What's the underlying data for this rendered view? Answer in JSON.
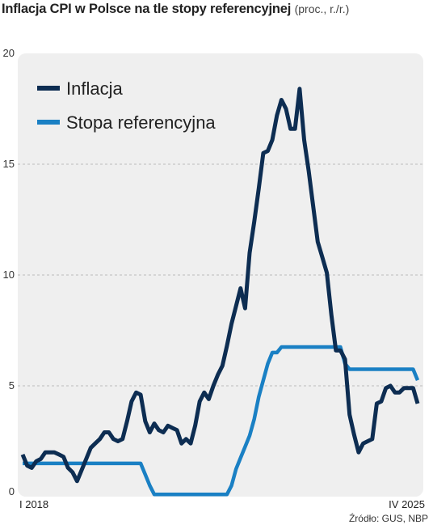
{
  "chart_data": {
    "type": "line",
    "title": "Inflacja CPI w Polsce na tle stopy referencyjnej",
    "subtitle": "(proc., r./r.)",
    "x_start": "2018-01",
    "x_end": "2025-04",
    "x_tick_labels": [
      "I 2018",
      "IV 2025"
    ],
    "ylim": [
      0,
      20
    ],
    "y_ticks": [
      0,
      5,
      10,
      15,
      20
    ],
    "grid": true,
    "legend_position": "top-left",
    "source": "Źródło: GUS, NBP",
    "colors": {
      "plot_background": "#efefef",
      "grid": "#bbbbbb"
    },
    "series": [
      {
        "name": "Inflacja",
        "color": "#0d2d52",
        "values": [
          1.9,
          1.4,
          1.3,
          1.6,
          1.7,
          2.0,
          2.0,
          2.0,
          1.9,
          1.8,
          1.3,
          1.1,
          0.7,
          1.2,
          1.7,
          2.2,
          2.4,
          2.6,
          2.9,
          2.9,
          2.6,
          2.5,
          2.6,
          3.4,
          4.3,
          4.7,
          4.6,
          3.4,
          2.9,
          3.3,
          3.0,
          2.9,
          3.2,
          3.1,
          3.0,
          2.4,
          2.6,
          2.4,
          3.2,
          4.3,
          4.7,
          4.4,
          5.0,
          5.5,
          5.9,
          6.8,
          7.8,
          8.6,
          9.4,
          8.5,
          11.0,
          12.4,
          13.9,
          15.5,
          15.6,
          16.1,
          17.2,
          17.9,
          17.5,
          16.6,
          16.6,
          18.4,
          16.1,
          14.7,
          13.1,
          11.5,
          10.8,
          10.1,
          8.2,
          6.6,
          6.6,
          6.2,
          3.7,
          2.8,
          2.0,
          2.4,
          2.5,
          2.6,
          4.2,
          4.3,
          4.9,
          5.0,
          4.7,
          4.7,
          4.9,
          4.9,
          4.9,
          4.2
        ],
        "marker": false
      },
      {
        "name": "Stopa referencyjna",
        "color": "#1a80c4",
        "values": [
          1.5,
          1.5,
          1.5,
          1.5,
          1.5,
          1.5,
          1.5,
          1.5,
          1.5,
          1.5,
          1.5,
          1.5,
          1.5,
          1.5,
          1.5,
          1.5,
          1.5,
          1.5,
          1.5,
          1.5,
          1.5,
          1.5,
          1.5,
          1.5,
          1.5,
          1.5,
          1.5,
          1.0,
          0.5,
          0.1,
          0.1,
          0.1,
          0.1,
          0.1,
          0.1,
          0.1,
          0.1,
          0.1,
          0.1,
          0.1,
          0.1,
          0.1,
          0.1,
          0.1,
          0.1,
          0.1,
          0.5,
          1.25,
          1.75,
          2.25,
          2.75,
          3.5,
          4.5,
          5.25,
          6.0,
          6.5,
          6.5,
          6.75,
          6.75,
          6.75,
          6.75,
          6.75,
          6.75,
          6.75,
          6.75,
          6.75,
          6.75,
          6.75,
          6.75,
          6.75,
          6.75,
          6.0,
          5.75,
          5.75,
          5.75,
          5.75,
          5.75,
          5.75,
          5.75,
          5.75,
          5.75,
          5.75,
          5.75,
          5.75,
          5.75,
          5.75,
          5.75,
          5.25
        ]
      }
    ]
  }
}
